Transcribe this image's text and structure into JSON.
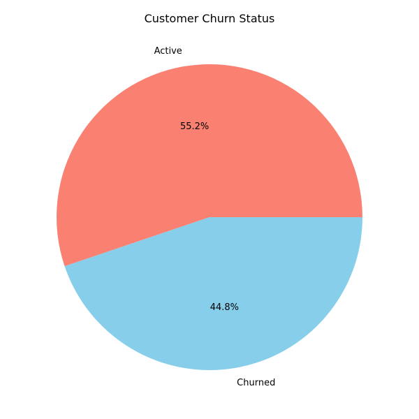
{
  "chart_data": {
    "type": "pie",
    "title": "Customer Churn Status",
    "slices": [
      {
        "label": "Active",
        "value": 55.2,
        "pct_label": "55.2%",
        "color": "#fa8072"
      },
      {
        "label": "Churned",
        "value": 44.8,
        "pct_label": "44.8%",
        "color": "#87ceeb"
      }
    ],
    "start_angle_deg": 0,
    "direction": "counterclockwise"
  }
}
